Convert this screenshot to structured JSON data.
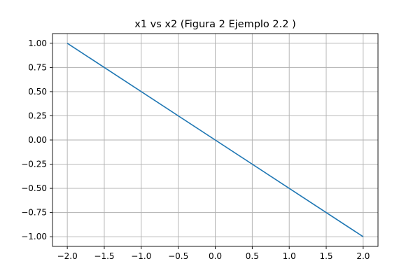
{
  "chart_data": {
    "type": "line",
    "title": "x1 vs x2 (Figura 2 Ejemplo 2.2 )",
    "xlabel": "",
    "ylabel": "",
    "xlim": [
      -2.2,
      2.2
    ],
    "ylim": [
      -1.1,
      1.1
    ],
    "grid": true,
    "x_ticks": [
      -2.0,
      -1.5,
      -1.0,
      -0.5,
      0.0,
      0.5,
      1.0,
      1.5,
      2.0
    ],
    "x_tick_labels": [
      "−2.0",
      "−1.5",
      "−1.0",
      "−0.5",
      "0.0",
      "0.5",
      "1.0",
      "1.5",
      "2.0"
    ],
    "y_ticks": [
      1.0,
      0.75,
      0.5,
      0.25,
      0.0,
      -0.25,
      -0.5,
      -0.75,
      -1.0
    ],
    "y_tick_labels": [
      "1.00",
      "0.75",
      "0.50",
      "0.25",
      "0.00",
      "−0.25",
      "−0.50",
      "−0.75",
      "−1.00"
    ],
    "series": [
      {
        "color": "#1f77b4",
        "x": [
          -2.0,
          2.0
        ],
        "y": [
          1.0,
          -1.0
        ]
      }
    ]
  }
}
